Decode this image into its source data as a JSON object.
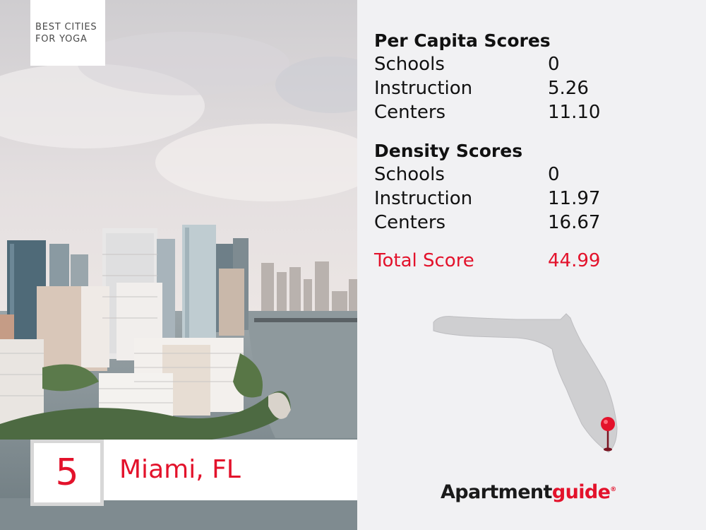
{
  "badge": {
    "line1": "BEST CITIES",
    "line2": "FOR YOGA"
  },
  "rank": "5",
  "city": "Miami, FL",
  "per_capita": {
    "title": "Per Capita Scores",
    "rows": [
      {
        "label": "Schools",
        "value": "0"
      },
      {
        "label": "Instruction",
        "value": "5.26"
      },
      {
        "label": "Centers",
        "value": "11.10"
      }
    ]
  },
  "density": {
    "title": "Density Scores",
    "rows": [
      {
        "label": "Schools",
        "value": "0"
      },
      {
        "label": "Instruction",
        "value": "11.97"
      },
      {
        "label": "Centers",
        "value": "16.67"
      }
    ]
  },
  "total": {
    "label": "Total Score",
    "value": "44.99"
  },
  "logo": {
    "part1": "Apartment",
    "part2": "guide",
    "mark": "®"
  },
  "colors": {
    "accent": "#e3122b",
    "panel": "#f1f1f3",
    "text": "#111111",
    "map": "#cfcfd1"
  },
  "icons": {
    "map": "florida-state-map",
    "pin": "location-pin-icon"
  }
}
